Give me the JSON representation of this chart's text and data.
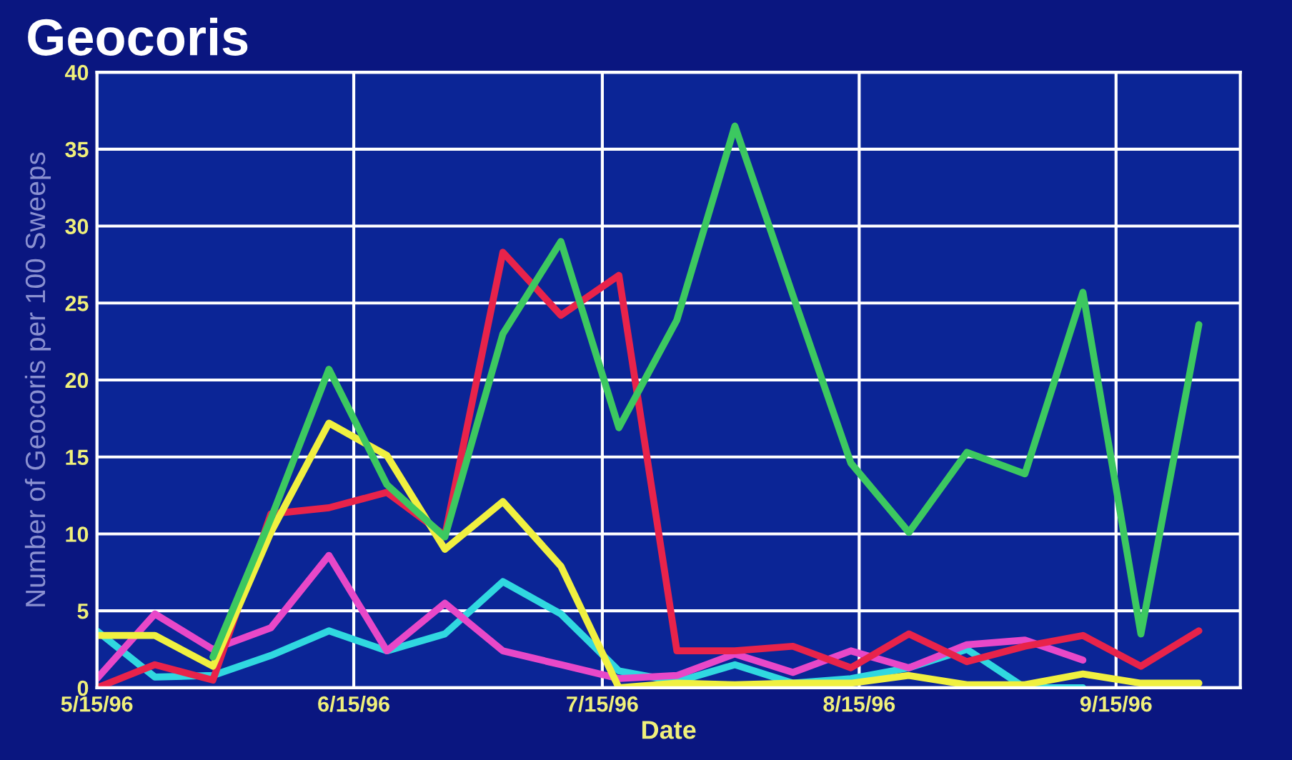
{
  "chart_data": {
    "type": "line",
    "title": "Geocoris",
    "xlabel": "Date",
    "ylabel": "Number of Geocoris per 100 Sweeps",
    "x": [
      "1996-05-15",
      "1996-05-22",
      "1996-05-29",
      "1996-06-05",
      "1996-06-12",
      "1996-06-19",
      "1996-06-26",
      "1996-07-03",
      "1996-07-10",
      "1996-07-17",
      "1996-07-24",
      "1996-07-31",
      "1996-08-07",
      "1996-08-14",
      "1996-08-21",
      "1996-08-28",
      "1996-09-04",
      "1996-09-11",
      "1996-09-18",
      "1996-09-25"
    ],
    "series": [
      {
        "color": "#30d8e0",
        "values": [
          3.7,
          0.7,
          0.8,
          2.1,
          3.7,
          2.4,
          3.5,
          6.9,
          4.8,
          1.1,
          0.4,
          1.5,
          0.3,
          0.6,
          1.3,
          2.5,
          0,
          0,
          null,
          null
        ]
      },
      {
        "color": "#e848c8",
        "values": [
          0.6,
          4.8,
          2.5,
          3.9,
          8.6,
          2.4,
          5.5,
          2.4,
          1.5,
          0.6,
          0.8,
          2.2,
          1,
          2.4,
          1.3,
          2.8,
          3.1,
          1.8,
          null,
          null
        ]
      },
      {
        "color": "#e8234a",
        "values": [
          0,
          1.5,
          0.5,
          11.3,
          11.7,
          12.7,
          9.9,
          28.3,
          24.2,
          26.8,
          2.4,
          2.4,
          2.7,
          1.3,
          3.5,
          1.7,
          2.7,
          3.4,
          1.4,
          3.7
        ]
      },
      {
        "color": "#f0f040",
        "values": [
          3.4,
          3.4,
          1.4,
          10.1,
          17.2,
          15.1,
          9,
          12.1,
          7.9,
          0,
          0.3,
          0.2,
          0.3,
          0.3,
          0.8,
          0.2,
          0.2,
          0.9,
          0.3,
          0.3
        ]
      },
      {
        "color": "#3cc860",
        "values": [
          null,
          null,
          2,
          11,
          20.7,
          13.2,
          9.8,
          23,
          29,
          16.9,
          23.9,
          36.5,
          25.5,
          14.6,
          10.1,
          15.3,
          13.9,
          25.7,
          3.5,
          23.6
        ]
      }
    ],
    "xlim": [
      "1996-05-15",
      "1996-09-30"
    ],
    "xticks": [
      {
        "value": "1996-05-15",
        "label": "5/15/96"
      },
      {
        "value": "1996-06-15",
        "label": "6/15/96"
      },
      {
        "value": "1996-07-15",
        "label": "7/15/96"
      },
      {
        "value": "1996-08-15",
        "label": "8/15/96"
      },
      {
        "value": "1996-09-15",
        "label": "9/15/96"
      }
    ],
    "ylim": [
      0,
      40
    ],
    "yticks": [
      0,
      5,
      10,
      15,
      20,
      25,
      30,
      35,
      40
    ],
    "grid": true,
    "line_style": "solid",
    "marker": "none"
  }
}
